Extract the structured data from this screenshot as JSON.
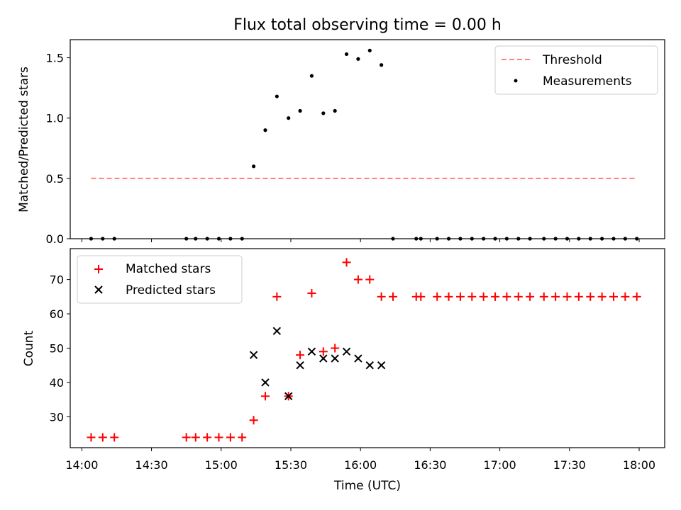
{
  "chart_data": [
    {
      "type": "scatter",
      "title": "Flux total observing time = 0.00 h",
      "xlabel": "",
      "ylabel": "Matched/Predicted stars",
      "ylim": [
        0,
        1.65
      ],
      "yticks": [
        "0.0",
        "0.5",
        "1.0",
        "1.5"
      ],
      "ytick_values": [
        0,
        0.5,
        1.0,
        1.5
      ],
      "grid": false,
      "legend_position": "top-right",
      "threshold": {
        "name": "Threshold",
        "value": 0.5,
        "x_start": "14:04",
        "x_end": "17:59",
        "color": "#ff7f7f",
        "style": "dashed"
      },
      "series": [
        {
          "name": "Measurements",
          "marker": "dot",
          "color": "#000000",
          "x": [
            "14:04",
            "14:09",
            "14:14",
            "14:45",
            "14:49",
            "14:54",
            "14:59",
            "15:04",
            "15:09",
            "15:14",
            "15:19",
            "15:24",
            "15:29",
            "15:34",
            "15:39",
            "15:44",
            "15:49",
            "15:54",
            "15:59",
            "16:04",
            "16:09",
            "16:14",
            "16:24",
            "16:26",
            "16:33",
            "16:38",
            "16:43",
            "16:48",
            "16:53",
            "16:58",
            "17:03",
            "17:08",
            "17:13",
            "17:19",
            "17:24",
            "17:29",
            "17:34",
            "17:39",
            "17:44",
            "17:49",
            "17:54",
            "17:59"
          ],
          "y": [
            0,
            0,
            0,
            0,
            0,
            0,
            0,
            0,
            0,
            0.6,
            0.9,
            1.18,
            1.0,
            1.06,
            1.35,
            1.04,
            1.06,
            1.53,
            1.49,
            1.56,
            1.44,
            0,
            0,
            0,
            0,
            0,
            0,
            0,
            0,
            0,
            0,
            0,
            0,
            0,
            0,
            0,
            0,
            0,
            0,
            0,
            0,
            0
          ]
        }
      ]
    },
    {
      "type": "scatter",
      "title": "",
      "xlabel": "Time (UTC)",
      "ylabel": "Count",
      "ylim": [
        21,
        79
      ],
      "yticks": [
        "30",
        "40",
        "50",
        "60",
        "70"
      ],
      "ytick_values": [
        30,
        40,
        50,
        60,
        70
      ],
      "xlim": [
        "13:55",
        "18:11"
      ],
      "xticks": [
        "14:00",
        "14:30",
        "15:00",
        "15:30",
        "16:00",
        "16:30",
        "17:00",
        "17:30",
        "18:00"
      ],
      "grid": false,
      "legend_position": "top-left",
      "series": [
        {
          "name": "Matched stars",
          "marker": "plus",
          "color": "#ff0000",
          "x": [
            "14:04",
            "14:09",
            "14:14",
            "14:45",
            "14:49",
            "14:54",
            "14:59",
            "15:04",
            "15:09",
            "15:14",
            "15:19",
            "15:24",
            "15:29",
            "15:34",
            "15:39",
            "15:44",
            "15:49",
            "15:54",
            "15:59",
            "16:04",
            "16:09",
            "16:14",
            "16:24",
            "16:26",
            "16:33",
            "16:38",
            "16:43",
            "16:48",
            "16:53",
            "16:58",
            "17:03",
            "17:08",
            "17:13",
            "17:19",
            "17:24",
            "17:29",
            "17:34",
            "17:39",
            "17:44",
            "17:49",
            "17:54",
            "17:59"
          ],
          "y": [
            24,
            24,
            24,
            24,
            24,
            24,
            24,
            24,
            24,
            29,
            36,
            65,
            36,
            48,
            66,
            49,
            50,
            75,
            70,
            70,
            65,
            65,
            65,
            65,
            65,
            65,
            65,
            65,
            65,
            65,
            65,
            65,
            65,
            65,
            65,
            65,
            65,
            65,
            65,
            65,
            65,
            65
          ]
        },
        {
          "name": "Predicted stars",
          "marker": "x",
          "color": "#000000",
          "x": [
            "15:14",
            "15:19",
            "15:24",
            "15:29",
            "15:34",
            "15:39",
            "15:44",
            "15:49",
            "15:54",
            "15:59",
            "16:04",
            "16:09"
          ],
          "y": [
            48,
            40,
            55,
            36,
            45,
            49,
            47,
            47,
            49,
            47,
            45,
            45
          ]
        }
      ]
    }
  ]
}
